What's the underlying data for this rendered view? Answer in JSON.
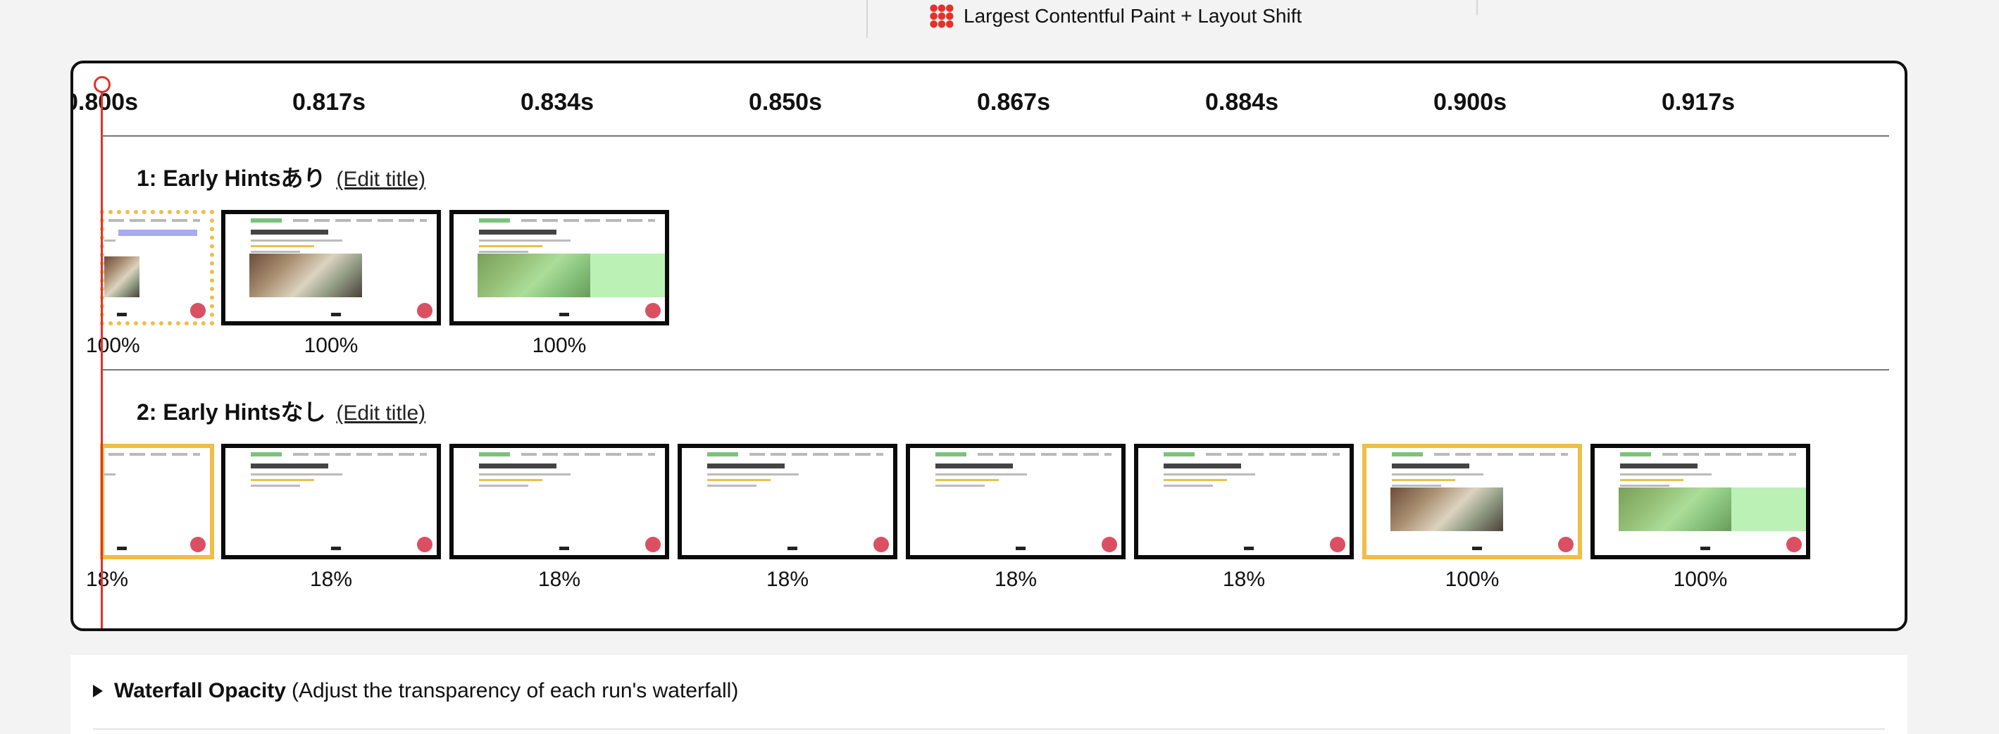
{
  "legend": {
    "lcp_layout_shift": "Largest Contentful Paint + Layout Shift"
  },
  "timeline": {
    "ticks": [
      "0.800s",
      "0.817s",
      "0.834s",
      "0.850s",
      "0.867s",
      "0.884s",
      "0.900s",
      "0.917s"
    ]
  },
  "runs": [
    {
      "title": "1: Early Hintsあり",
      "edit_label": "(Edit title)",
      "frames": [
        {
          "label": "100%",
          "state": "lcp-shift"
        },
        {
          "label": "100%",
          "state": "normal"
        },
        {
          "label": "100%",
          "state": "normal"
        }
      ]
    },
    {
      "title": "2: Early Hintsなし",
      "edit_label": "(Edit title)",
      "frames": [
        {
          "label": "18%",
          "state": "changed"
        },
        {
          "label": "18%",
          "state": "normal"
        },
        {
          "label": "18%",
          "state": "normal"
        },
        {
          "label": "18%",
          "state": "normal"
        },
        {
          "label": "18%",
          "state": "normal"
        },
        {
          "label": "18%",
          "state": "normal"
        },
        {
          "label": "100%",
          "state": "changed"
        },
        {
          "label": "100%",
          "state": "normal"
        }
      ]
    }
  ],
  "waterfall_opacity": {
    "label": "Waterfall Opacity",
    "description": "(Adjust the transparency of each run's waterfall)"
  },
  "colors": {
    "playhead": "#e0332c",
    "changed_frame": "#f0bd46",
    "lcp_overlay": "#84e678"
  }
}
